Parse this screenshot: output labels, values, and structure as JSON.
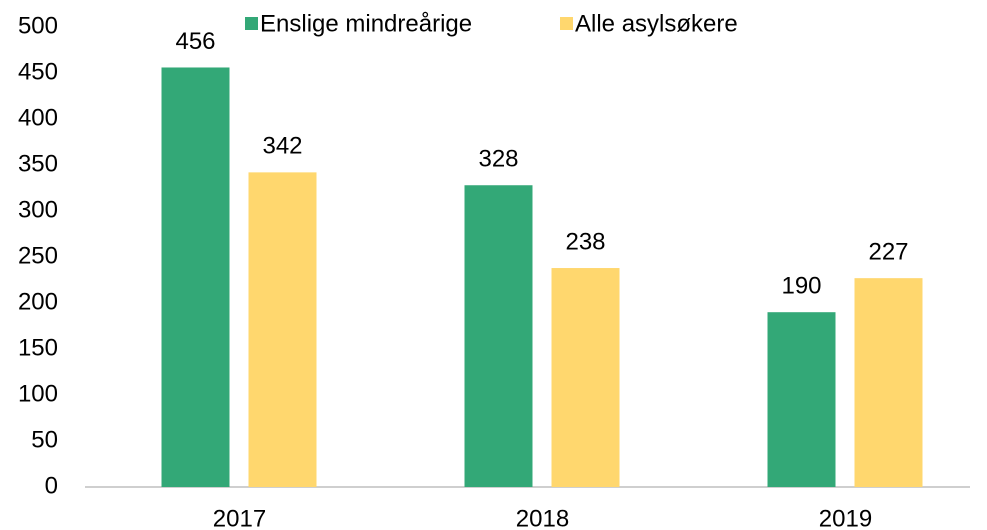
{
  "chart_data": {
    "type": "bar",
    "categories": [
      "2017",
      "2018",
      "2019"
    ],
    "series": [
      {
        "name": "Enslige mindreårige",
        "color": "#33a877",
        "values": [
          456,
          328,
          190
        ]
      },
      {
        "name": "Alle asylsøkere",
        "color": "#ffd76e",
        "values": [
          342,
          238,
          227
        ]
      }
    ],
    "ylim": [
      0,
      500
    ],
    "yticks": [
      0,
      50,
      100,
      150,
      200,
      250,
      300,
      350,
      400,
      450,
      500
    ],
    "grid": false,
    "legend": "top"
  }
}
